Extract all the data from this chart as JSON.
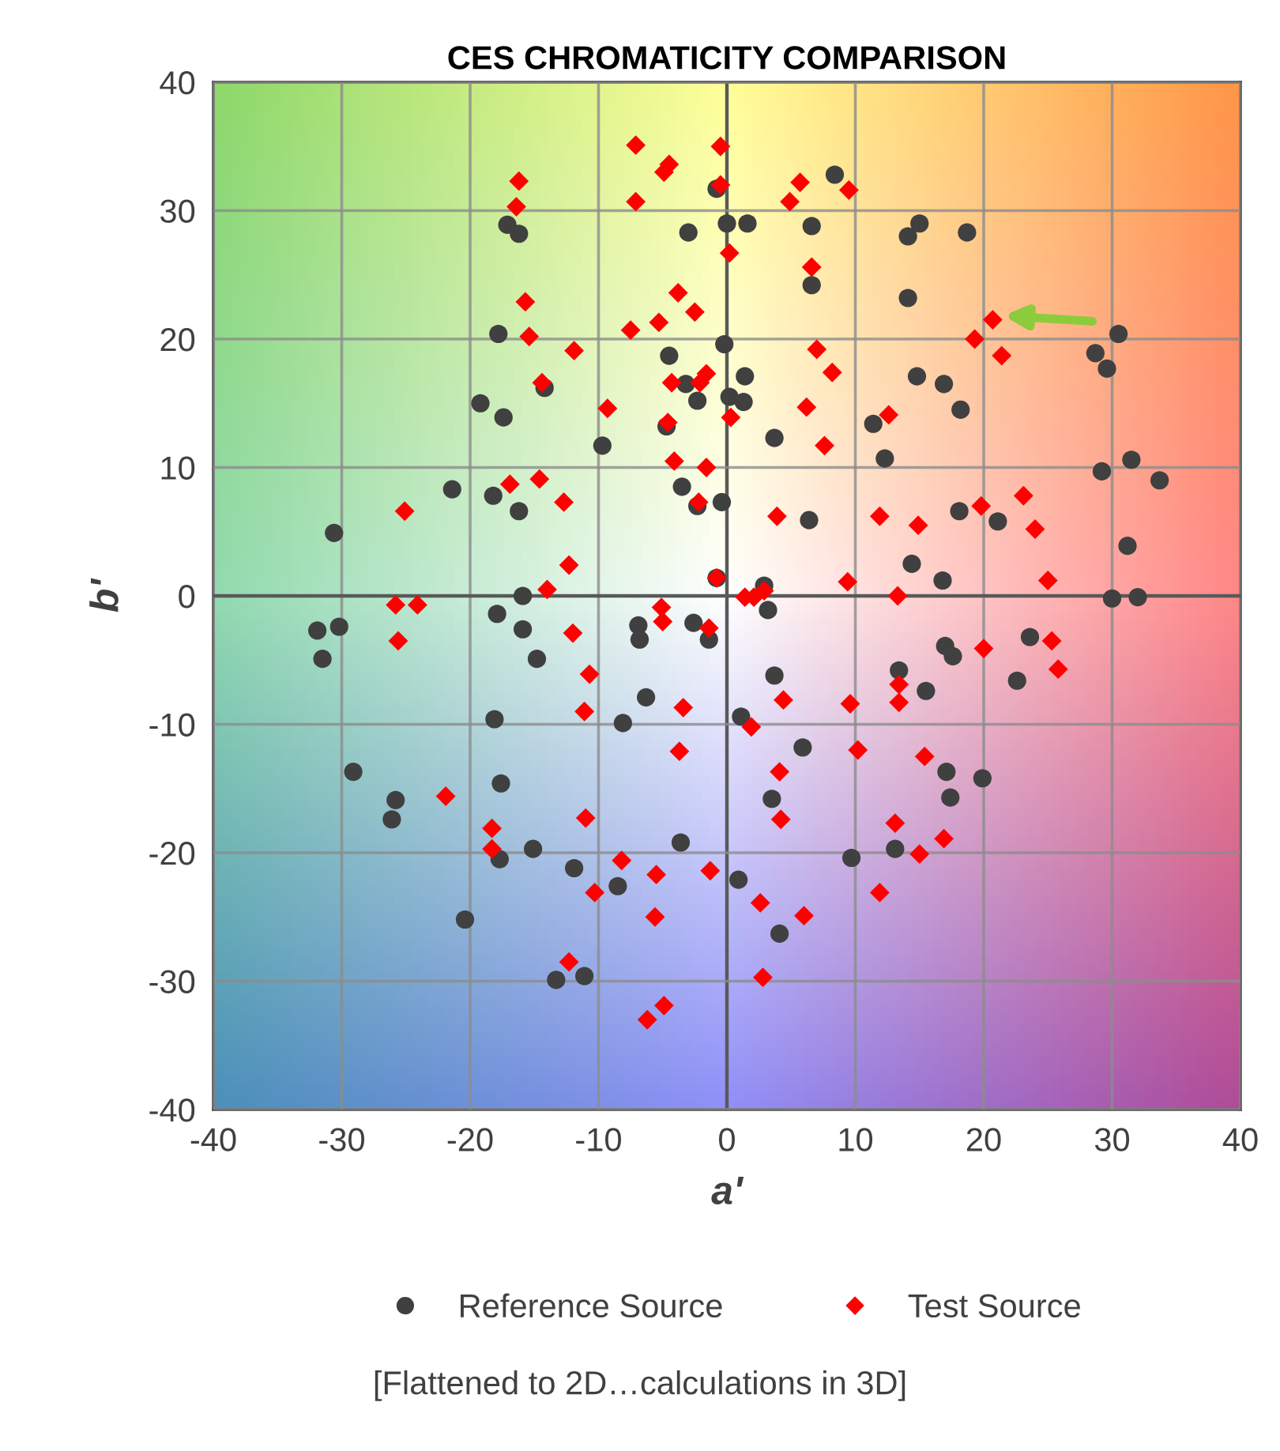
{
  "chart_data": {
    "type": "scatter",
    "title": "CES CHROMATICITY COMPARISON",
    "xlabel": "a'",
    "ylabel": "b'",
    "xlim": [
      -40,
      40
    ],
    "ylim": [
      -40,
      40
    ],
    "xticks": [
      -40,
      -30,
      -20,
      -10,
      0,
      10,
      20,
      30,
      40
    ],
    "yticks": [
      -40,
      -30,
      -20,
      -10,
      0,
      10,
      20,
      30,
      40
    ],
    "grid": true,
    "legend": "bottom",
    "annotations": [
      "[Flattened to 2D…calculations in 3D]"
    ],
    "series": [
      {
        "name": "Reference Source",
        "color": "#404040",
        "marker": "circle",
        "x": [
          -0.8,
          -17.1,
          -16.2,
          -3.0,
          0.0,
          -17.8,
          -0.2,
          -4.5,
          -3.2,
          -2.3,
          0.2,
          -14.2,
          -19.2,
          -17.4,
          -4.7,
          -9.7,
          -21.4,
          -18.2,
          -16.2,
          -3.5,
          -2.3,
          -0.4,
          -30.6,
          -0.8,
          -15.9,
          8.4,
          1.6,
          6.6,
          14.1,
          15.0,
          18.7,
          6.6,
          14.1,
          30.5,
          28.7,
          29.6,
          1.4,
          14.8,
          16.9,
          18.2,
          1.3,
          11.4,
          3.7,
          12.3,
          29.2,
          31.5,
          33.7,
          6.4,
          18.1,
          21.1,
          14.4,
          16.8,
          31.2,
          2.9,
          30.0,
          32.0,
          -17.9,
          -31.9,
          -30.2,
          -31.5,
          -15.9,
          -14.8,
          -6.9,
          -6.8,
          -2.6,
          -1.4,
          -18.1,
          -8.1,
          -6.3,
          -29.1,
          -17.6,
          -25.8,
          -26.1,
          -17.7,
          -15.1,
          -11.9,
          -8.5,
          -3.6,
          -20.4,
          -13.3,
          -11.1,
          3.2,
          17.0,
          17.6,
          23.6,
          22.6,
          13.4,
          15.5,
          3.7,
          1.1,
          5.9,
          17.1,
          19.9,
          17.4,
          3.5,
          13.1,
          9.7,
          0.9,
          4.1
        ],
        "values": [
          31.7,
          28.9,
          28.2,
          28.3,
          29.0,
          20.4,
          19.6,
          18.7,
          16.5,
          15.2,
          15.5,
          16.2,
          15.0,
          13.9,
          13.2,
          11.7,
          8.3,
          7.8,
          6.6,
          8.5,
          7.0,
          7.3,
          4.9,
          1.4,
          0.0,
          32.8,
          29.0,
          28.8,
          28.0,
          29.0,
          28.3,
          24.2,
          23.2,
          20.4,
          18.9,
          17.7,
          17.1,
          17.1,
          16.5,
          14.5,
          15.1,
          13.4,
          12.3,
          10.7,
          9.7,
          10.6,
          9.0,
          5.9,
          6.6,
          5.8,
          2.5,
          1.2,
          3.9,
          0.8,
          -0.2,
          -0.1,
          -1.4,
          -2.7,
          -2.4,
          -4.9,
          -2.6,
          -4.9,
          -2.3,
          -3.4,
          -2.1,
          -3.4,
          -9.6,
          -9.9,
          -7.9,
          -13.7,
          -14.6,
          -15.9,
          -17.4,
          -20.5,
          -19.7,
          -21.2,
          -22.6,
          -19.2,
          -25.2,
          -29.9,
          -29.6,
          -1.1,
          -3.9,
          -4.7,
          -3.2,
          -6.6,
          -5.8,
          -7.4,
          -6.2,
          -9.4,
          -11.8,
          -13.7,
          -14.2,
          -15.7,
          -15.8,
          -19.7,
          -20.4,
          -22.1,
          -26.3
        ]
      },
      {
        "name": "Test Source",
        "color": "#ff0000",
        "marker": "diamond",
        "x": [
          -7.1,
          -0.5,
          -16.2,
          -16.4,
          -4.9,
          -4.5,
          -7.1,
          -0.5,
          0.2,
          -15.7,
          -3.8,
          -2.5,
          -15.4,
          -11.9,
          -7.5,
          -5.3,
          -14.4,
          -4.3,
          -1.6,
          -2.1,
          -9.3,
          -4.6,
          0.3,
          -4.1,
          -1.6,
          -16.9,
          -14.6,
          -12.7,
          -2.2,
          -25.1,
          -12.3,
          -14.0,
          -0.8,
          -25.8,
          -24.1,
          5.7,
          4.9,
          9.5,
          6.6,
          20.7,
          19.3,
          21.4,
          7.0,
          8.2,
          6.2,
          12.6,
          7.6,
          3.9,
          11.9,
          14.9,
          19.8,
          23.1,
          24.0,
          9.4,
          25.0,
          1.4,
          2.1,
          2.9,
          13.3,
          -25.6,
          -12.0,
          -5.1,
          -5.0,
          -1.4,
          -10.7,
          -11.1,
          -3.4,
          -3.7,
          -21.9,
          -18.3,
          -18.3,
          -11.0,
          -8.2,
          -5.5,
          -1.3,
          -10.3,
          -5.6,
          -12.3,
          -4.9,
          -6.2,
          20.0,
          25.3,
          25.8,
          13.4,
          13.4,
          4.4,
          9.6,
          1.9,
          10.2,
          15.4,
          4.1,
          4.2,
          13.1,
          16.9,
          15.0,
          11.9,
          2.6,
          6.0,
          2.8
        ],
        "values": [
          35.1,
          35.0,
          32.3,
          30.3,
          33.0,
          33.6,
          30.7,
          32.0,
          26.7,
          22.9,
          23.6,
          22.1,
          20.2,
          19.1,
          20.7,
          21.3,
          16.6,
          16.6,
          17.3,
          16.6,
          14.6,
          13.5,
          13.9,
          10.5,
          10.0,
          8.7,
          9.1,
          7.3,
          7.3,
          6.6,
          2.4,
          0.5,
          1.4,
          -0.7,
          -0.7,
          32.2,
          30.7,
          31.6,
          25.6,
          21.5,
          20.0,
          18.7,
          19.2,
          17.4,
          14.7,
          14.1,
          11.7,
          6.2,
          6.2,
          5.5,
          7.0,
          7.8,
          5.2,
          1.1,
          1.2,
          -0.1,
          -0.1,
          0.4,
          0.0,
          -3.5,
          -2.9,
          -0.9,
          -2.0,
          -2.5,
          -6.1,
          -9.0,
          -8.7,
          -12.1,
          -15.6,
          -18.1,
          -19.7,
          -17.3,
          -20.6,
          -21.7,
          -21.4,
          -23.1,
          -25.0,
          -28.5,
          -31.9,
          -33.0,
          -4.1,
          -3.5,
          -5.7,
          -6.9,
          -8.3,
          -8.1,
          -8.4,
          -10.2,
          -12.0,
          -12.5,
          -13.7,
          -17.4,
          -17.7,
          -18.9,
          -20.1,
          -23.1,
          -23.9,
          -24.9,
          -29.7
        ]
      }
    ]
  }
}
